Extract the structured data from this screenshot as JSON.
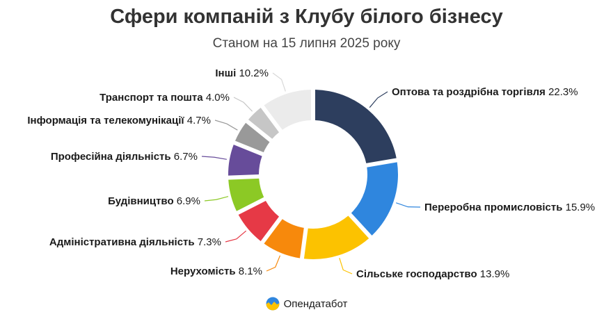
{
  "header": {
    "title": "Сфери компаній з Клубу білого бізнесу",
    "subtitle": "Станом на 15 липня 2025 року"
  },
  "brand": {
    "name": "Опендатабот",
    "icon": "opendatabot-logo-icon"
  },
  "chart_data": {
    "type": "pie",
    "variant": "donut",
    "title": "Сфери компаній з Клубу білого бізнесу",
    "subtitle": "Станом на 15 липня 2025 року",
    "unit": "%",
    "slices": [
      {
        "label": "Оптова та роздрібна торгівля",
        "value": 22.3,
        "value_text": "22.3%",
        "color": "#2d3e5e"
      },
      {
        "label": "Переробна промисловість",
        "value": 15.9,
        "value_text": "15.9%",
        "color": "#2f86de"
      },
      {
        "label": "Сільське господарство",
        "value": 13.9,
        "value_text": "13.9%",
        "color": "#fcc200"
      },
      {
        "label": "Нерухомість",
        "value": 8.1,
        "value_text": "8.1%",
        "color": "#f7890c"
      },
      {
        "label": "Адміністративна діяльність",
        "value": 7.3,
        "value_text": "7.3%",
        "color": "#e63946"
      },
      {
        "label": "Будівництво",
        "value": 6.9,
        "value_text": "6.9%",
        "color": "#8cc925"
      },
      {
        "label": "Професійна діяльність",
        "value": 6.7,
        "value_text": "6.7%",
        "color": "#674c9a"
      },
      {
        "label": "Інформація та телекомунікації",
        "value": 4.7,
        "value_text": "4.7%",
        "color": "#999999"
      },
      {
        "label": "Транспорт та пошта",
        "value": 4.0,
        "value_text": "4.0%",
        "color": "#c6c6c6"
      },
      {
        "label": "Інші",
        "value": 10.2,
        "value_text": "10.2%",
        "color": "#ebebeb"
      }
    ]
  }
}
